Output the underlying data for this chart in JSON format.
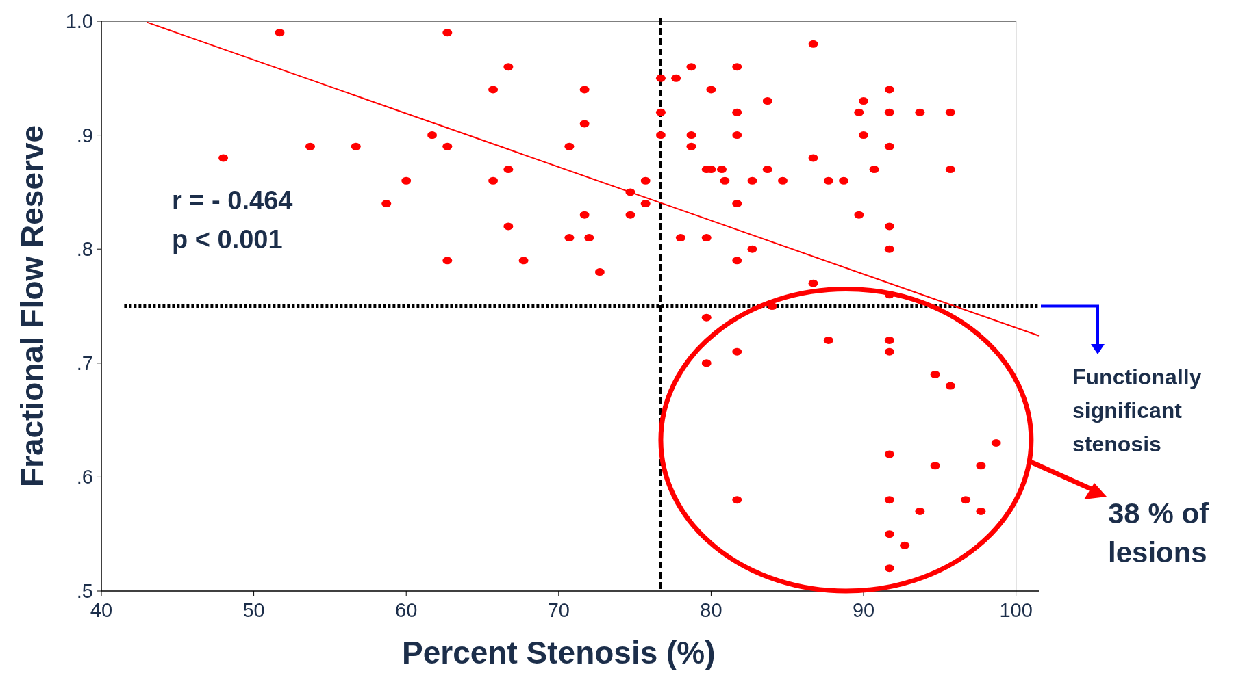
{
  "chart_data": {
    "type": "scatter",
    "xlabel": "Percent Stenosis (%)",
    "ylabel": "Fractional Flow Reserve",
    "xlim": [
      40,
      101.5
    ],
    "xticks": [
      40,
      50,
      60,
      70,
      80,
      90,
      100
    ],
    "ylim": [
      0.5,
      1.0
    ],
    "yticks": [
      {
        "value": 0.5,
        "label": ".5"
      },
      {
        "value": 0.6,
        "label": ".6"
      },
      {
        "value": 0.7,
        "label": ".7"
      },
      {
        "value": 0.8,
        "label": ".8"
      },
      {
        "value": 0.9,
        "label": ".9"
      },
      {
        "value": 1.0,
        "label": "1.0"
      }
    ],
    "series": [
      {
        "marker": "circle",
        "color": "#ff0000",
        "x": [
          51.7,
          62.7,
          48,
          53.7,
          56.7,
          58.7,
          60,
          61.7,
          62.7,
          62.7,
          65.7,
          65.7,
          66.7,
          66.7,
          66.7,
          67.7,
          70.7,
          70.7,
          71.7,
          71.7,
          71.7,
          72,
          72.7,
          74.7,
          74.7,
          75.7,
          75.7,
          76.7,
          76.7,
          76.7,
          77.7,
          78.7,
          78.7,
          78.7,
          78,
          79.7,
          80,
          80,
          79.7,
          80.7,
          80.9,
          81.7,
          81.7,
          81.7,
          81.7,
          81.7,
          82.7,
          82.7,
          83.7,
          83.7,
          84.7,
          86.7,
          86.7,
          86.7,
          87.7,
          88.7,
          89.7,
          90,
          90,
          89.7,
          90.7,
          91.7,
          91.7,
          91.7,
          91.7,
          91.7,
          91.7,
          93.7,
          95.7,
          95.7,
          79.7,
          84,
          79.7,
          81.7,
          87.7,
          91.7,
          91.7,
          94.7,
          95.7,
          98.7,
          91.7,
          94.7,
          97.7,
          81.7,
          91.7,
          96.7,
          93.7,
          97.7,
          91.7,
          92.7,
          91.7
        ],
        "values": [
          0.99,
          0.99,
          0.88,
          0.89,
          0.89,
          0.84,
          0.86,
          0.9,
          0.89,
          0.79,
          0.94,
          0.86,
          0.96,
          0.87,
          0.82,
          0.79,
          0.89,
          0.81,
          0.94,
          0.91,
          0.83,
          0.81,
          0.78,
          0.85,
          0.83,
          0.86,
          0.84,
          0.95,
          0.92,
          0.9,
          0.95,
          0.96,
          0.9,
          0.89,
          0.81,
          0.87,
          0.87,
          0.94,
          0.81,
          0.87,
          0.86,
          0.96,
          0.92,
          0.9,
          0.84,
          0.79,
          0.86,
          0.8,
          0.93,
          0.87,
          0.86,
          0.98,
          0.88,
          0.77,
          0.86,
          0.86,
          0.92,
          0.93,
          0.9,
          0.83,
          0.87,
          0.94,
          0.92,
          0.89,
          0.82,
          0.8,
          0.76,
          0.92,
          0.92,
          0.87,
          0.74,
          0.75,
          0.7,
          0.71,
          0.72,
          0.72,
          0.71,
          0.69,
          0.68,
          0.63,
          0.62,
          0.61,
          0.61,
          0.58,
          0.58,
          0.58,
          0.57,
          0.57,
          0.55,
          0.54,
          0.52
        ]
      },
      {
        "type": "line",
        "color": "#ff0000",
        "x": [
          43,
          101.5
        ],
        "values": [
          0.999,
          0.724
        ]
      }
    ],
    "ref_lines": [
      {
        "axis": "y",
        "value": 0.75,
        "line_style": "dotted",
        "color": "#000000"
      },
      {
        "axis": "x",
        "value": 76.7,
        "line_style": "dashed",
        "color": "#000000"
      }
    ],
    "annotations": [
      "r = - 0.464",
      "p < 0.001",
      "Functionally significant stenosis",
      "38 % of lesions"
    ]
  }
}
